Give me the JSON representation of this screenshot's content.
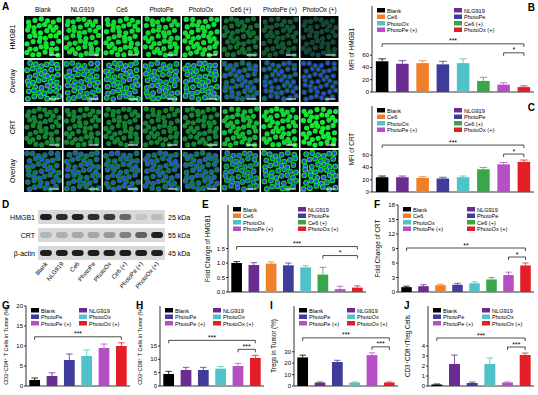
{
  "image_panel": {
    "panel": "A",
    "columns": [
      "Blank",
      "NLG919",
      "Ce6",
      "PhotoPe",
      "PhotoOx",
      "Ce6 (+)",
      "PhotoPe (+)",
      "PhotoOx (+)"
    ],
    "rows": [
      "HMGB1",
      "Overlay",
      "CRT",
      "Overlay"
    ]
  },
  "blot_panel": {
    "panel": "D",
    "lanes": [
      "Blank",
      "NLG919",
      "Ce6",
      "PhotoPe",
      "PhotoOx",
      "Ce6 (+)",
      "PhotoPe (+)",
      "PhotoOx (+)"
    ],
    "bands": [
      {
        "name": "HMGB1",
        "size": "25 kDa"
      },
      {
        "name": "CRT",
        "size": "55 kDa"
      },
      {
        "name": "β-actin",
        "size": "45 kDa"
      }
    ]
  },
  "chart_data": [
    {
      "panel": "B",
      "type": "bar",
      "y_label": "MFI of HMGB1",
      "categories": [
        "Blank",
        "NLG919",
        "Ce6",
        "PhotoPe",
        "PhotoOx",
        "Ce6 (+)",
        "PhotoPe (+)",
        "PhotoOx (+)"
      ],
      "values": [
        50,
        46,
        47,
        45,
        47,
        18,
        12,
        8
      ],
      "errors": [
        4,
        5,
        4,
        5,
        7,
        6,
        3,
        2
      ],
      "colors": [
        "#000000",
        "#6a2c91",
        "#f07f2a",
        "#3f3c9b",
        "#4fc3c7",
        "#3aa64a",
        "#b44fc4",
        "#e41e26"
      ],
      "ylim": [
        0,
        140
      ],
      "yticks": [
        0,
        20,
        40,
        60
      ],
      "legend": "top",
      "tick_labels": "y",
      "annotations": [
        {
          "text": "***",
          "from": "Blank",
          "to": "PhotoOx (+)"
        },
        {
          "text": "*",
          "from": "PhotoPe (+)",
          "to": "PhotoOx (+)"
        }
      ]
    },
    {
      "panel": "C",
      "type": "bar",
      "y_label": "MFI of CRT",
      "categories": [
        "Blank",
        "NLG919",
        "Ce6",
        "PhotoPe",
        "PhotoOx",
        "Ce6 (+)",
        "PhotoPe (+)",
        "PhotoOx (+)"
      ],
      "values": [
        24,
        24,
        23,
        22,
        24,
        37,
        45,
        49
      ],
      "errors": [
        2,
        2,
        2,
        2,
        2,
        3,
        3,
        3
      ],
      "colors": [
        "#000000",
        "#6a2c91",
        "#f07f2a",
        "#3f3c9b",
        "#4fc3c7",
        "#3aa64a",
        "#b44fc4",
        "#e41e26"
      ],
      "ylim": [
        0,
        140
      ],
      "yticks": [
        0,
        20,
        40,
        60
      ],
      "legend": "top",
      "tick_labels": "y",
      "annotations": [
        {
          "text": "***",
          "from": "Blank",
          "to": "PhotoOx (+)"
        },
        {
          "text": "*",
          "from": "PhotoPe (+)",
          "to": "PhotoOx (+)"
        }
      ]
    },
    {
      "panel": "E",
      "type": "bar",
      "y_label": "Fold Change of HMGB1",
      "categories": [
        "Blank",
        "NLG919",
        "Ce6",
        "PhotoPe",
        "PhotoOx",
        "Ce6 (+)",
        "PhotoPe (+)",
        "PhotoOx (+)"
      ],
      "values": [
        1.0,
        0.93,
        0.98,
        0.92,
        0.85,
        0.6,
        0.1,
        0.15
      ],
      "errors": [
        0.05,
        0.08,
        0.06,
        0.08,
        0.06,
        0.25,
        0.1,
        0.06
      ],
      "colors": [
        "#000000",
        "#6a2c91",
        "#f07f2a",
        "#3f3c9b",
        "#4fc3c7",
        "#3aa64a",
        "#b44fc4",
        "#e41e26"
      ],
      "ylim": [
        0,
        3
      ],
      "yticks": [
        {
          "value": 0,
          "label": "0.0"
        },
        0.5,
        {
          "value": 1,
          "label": "1.0"
        },
        1.5
      ],
      "legend": "top",
      "tick_labels": "y",
      "annotations": [
        {
          "text": "***",
          "from": "Blank",
          "to": "PhotoOx (+)"
        },
        {
          "text": "*",
          "from": "Ce6 (+)",
          "to": "PhotoOx (+)"
        }
      ]
    },
    {
      "panel": "F",
      "type": "bar",
      "y_label": "Fold Change of CRT",
      "categories": [
        "Blank",
        "NLG919",
        "Ce6",
        "PhotoPe",
        "PhotoOx",
        "Ce6 (+)",
        "PhotoPe (+)",
        "PhotoOx (+)"
      ],
      "values": [
        1.0,
        1.2,
        1.4,
        1.5,
        1.8,
        2.6,
        3.5,
        5.5
      ],
      "errors": [
        0.2,
        0.3,
        0.2,
        0.3,
        0.3,
        0.4,
        0.6,
        0.5
      ],
      "colors": [
        "#000000",
        "#6a2c91",
        "#f07f2a",
        "#3f3c9b",
        "#4fc3c7",
        "#3aa64a",
        "#b44fc4",
        "#e41e26"
      ],
      "ylim": [
        0,
        18
      ],
      "yticks": [
        0,
        3,
        6,
        9,
        12,
        15,
        18
      ],
      "legend": "top",
      "tick_labels": "y",
      "annotations": [
        {
          "text": "**",
          "from": "Blank",
          "to": "PhotoOx (+)"
        },
        {
          "text": "*",
          "from": "PhotoPe (+)",
          "to": "PhotoOx (+)"
        }
      ]
    },
    {
      "panel": "G",
      "type": "bar",
      "y_label": "CD3⁺CD4⁺ T Cells in Tumor (%)",
      "categories": [
        "Blank",
        "NLG919",
        "PhotoPe",
        "PhotoOx",
        "PhotoPe (+)",
        "PhotoOx (+)"
      ],
      "values": [
        1.5,
        2.5,
        6.5,
        7.5,
        9.5,
        10
      ],
      "errors": [
        0.5,
        0.8,
        1.5,
        1.5,
        1.0,
        0.8
      ],
      "colors": [
        "#000000",
        "#6a2c91",
        "#3f3c9b",
        "#4fc3c7",
        "#b44fc4",
        "#e41e26"
      ],
      "ylim": [
        0,
        20
      ],
      "yticks": [
        0,
        5,
        10,
        15,
        20
      ],
      "legend": "top",
      "tick_labels": "y",
      "annotations": [
        {
          "text": "***",
          "from": "Blank",
          "to": "PhotoOx (+)"
        }
      ]
    },
    {
      "panel": "H",
      "type": "bar",
      "y_label": "CD3⁺CD8⁺ T Cells in Tumor (%)",
      "categories": [
        "Blank",
        "NLG919",
        "PhotoPe",
        "PhotoOx",
        "PhotoPe (+)",
        "PhotoOx (+)"
      ],
      "values": [
        4.5,
        6,
        6,
        6.5,
        7.5,
        10.5
      ],
      "errors": [
        1,
        1,
        1,
        0.8,
        1,
        1
      ],
      "colors": [
        "#000000",
        "#6a2c91",
        "#3f3c9b",
        "#4fc3c7",
        "#b44fc4",
        "#e41e26"
      ],
      "ylim": [
        0,
        30
      ],
      "yticks": [
        0,
        5,
        10,
        15
      ],
      "legend": "top",
      "tick_labels": "y",
      "annotations": [
        {
          "text": "***",
          "from": "Blank",
          "to": "PhotoOx (+)"
        },
        {
          "text": "***",
          "from": "PhotoPe (+)",
          "to": "PhotoOx (+)"
        }
      ]
    },
    {
      "panel": "I",
      "type": "bar",
      "y_label": "Tregs in Tumor (%)",
      "categories": [
        "Blank",
        "NLG919",
        "PhotoPe",
        "PhotoOx",
        "PhotoPe (+)",
        "PhotoOx (+)"
      ],
      "values": [
        25,
        3,
        21,
        3,
        27,
        3
      ],
      "errors": [
        2,
        0.5,
        1.5,
        0.5,
        2,
        0.5
      ],
      "colors": [
        "#000000",
        "#6a2c91",
        "#3f3c9b",
        "#4fc3c7",
        "#b44fc4",
        "#e41e26"
      ],
      "ylim": [
        0,
        70
      ],
      "yticks": [
        0,
        10,
        20,
        30
      ],
      "legend": "top",
      "tick_labels": "y",
      "annotations": [
        {
          "text": "***",
          "from": "Blank",
          "to": "PhotoOx (+)"
        },
        {
          "text": "***",
          "from": "PhotoPe (+)",
          "to": "PhotoOx (+)"
        }
      ]
    },
    {
      "panel": "J",
      "type": "bar",
      "y_label": "CD3⁺CD8⁺/Treg Cells",
      "categories": [
        "Blank",
        "NLG919",
        "PhotoPe",
        "PhotoOx",
        "PhotoPe (+)",
        "PhotoOx (+)"
      ],
      "values": [
        0.15,
        2.2,
        0.3,
        2.2,
        0.35,
        3.1
      ],
      "errors": [
        0.05,
        0.9,
        0.1,
        0.6,
        0.05,
        0.2
      ],
      "colors": [
        "#000000",
        "#6a2c91",
        "#3f3c9b",
        "#4fc3c7",
        "#b44fc4",
        "#e41e26"
      ],
      "ylim": [
        0,
        8
      ],
      "yticks": [
        0,
        1,
        2,
        3,
        4
      ],
      "legend": "top",
      "tick_labels": "y",
      "annotations": [
        {
          "text": "***",
          "from": "Blank",
          "to": "PhotoOx (+)"
        },
        {
          "text": "***",
          "from": "PhotoPe (+)",
          "to": "PhotoOx (+)"
        }
      ]
    }
  ]
}
